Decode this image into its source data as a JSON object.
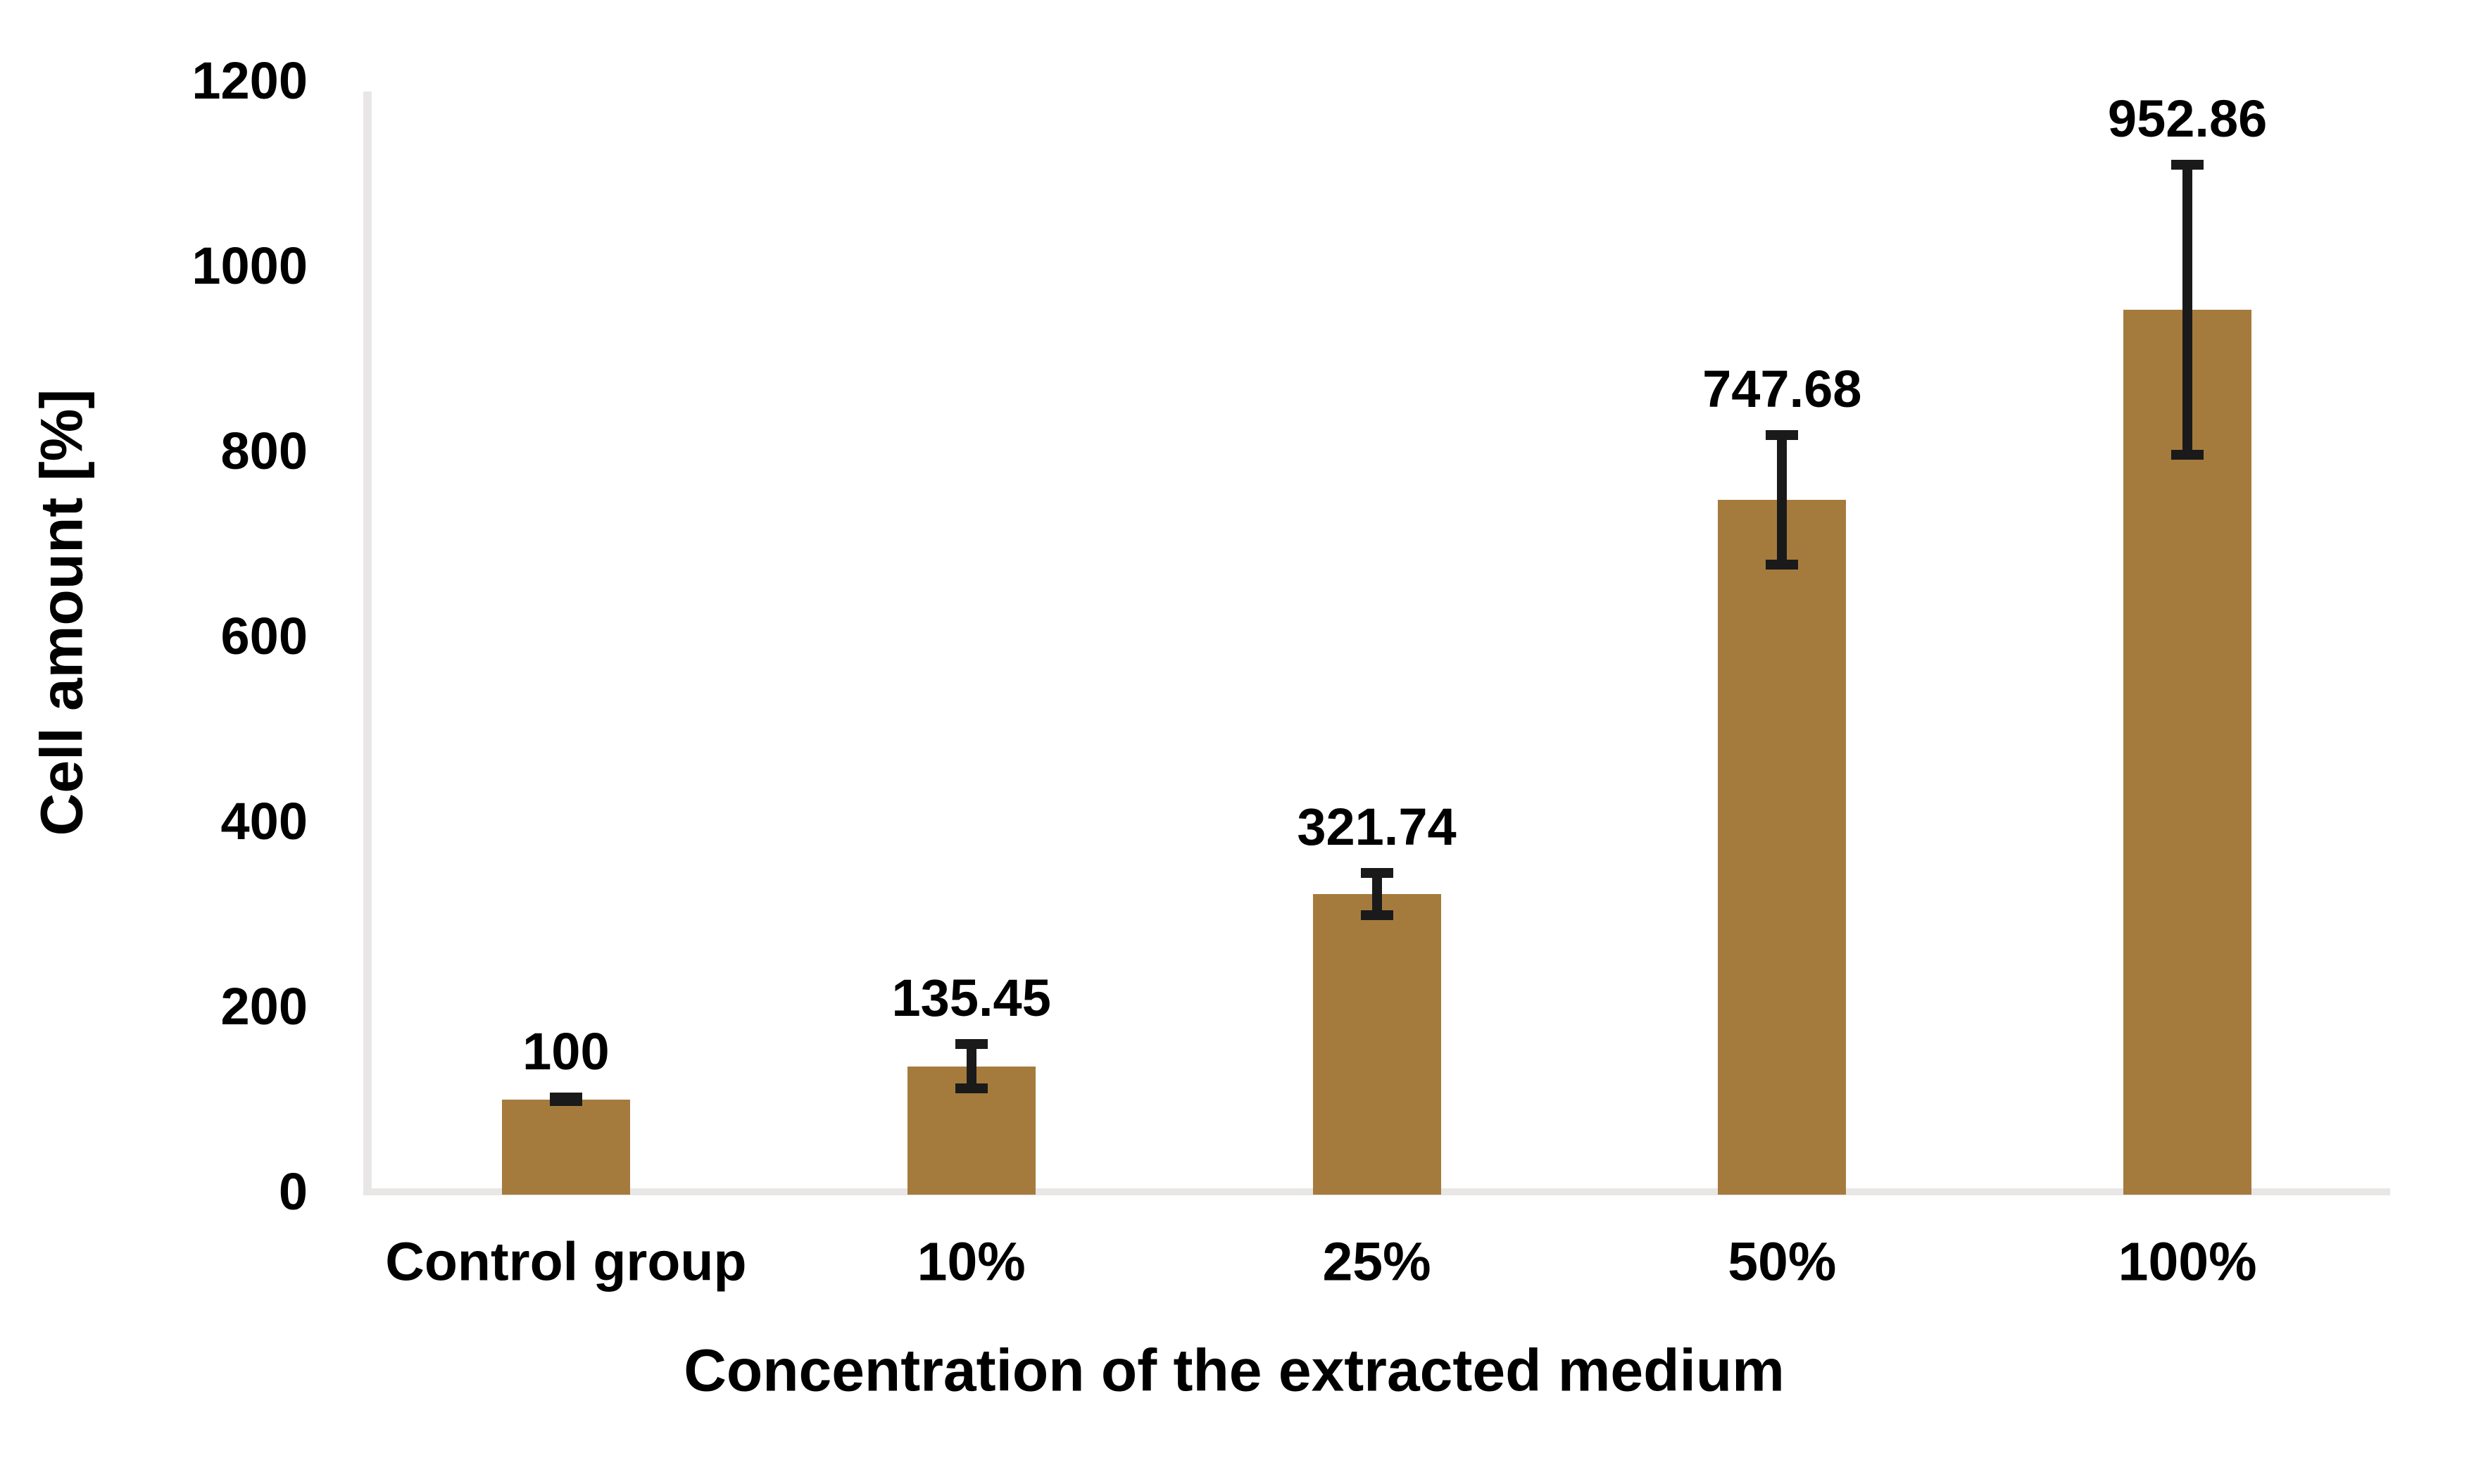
{
  "chart_data": {
    "type": "bar",
    "title": "",
    "categories": [
      "Control group",
      "10%",
      "25%",
      "50%",
      "100%"
    ],
    "values": [
      100,
      135.45,
      321.74,
      747.68,
      952.86
    ],
    "value_labels": [
      "100",
      "135.45",
      "321.74",
      "747.68",
      "952.86"
    ],
    "error_bars_plus_minus": [
      2,
      24,
      23,
      70,
      157
    ],
    "xlabel": "Concentration of the extracted medium",
    "ylabel": "Cell amount [%]",
    "ylim": [
      0,
      1200
    ],
    "yticks": [
      0,
      200,
      400,
      600,
      800,
      1000,
      1200
    ],
    "ytick_labels": [
      "0",
      "200",
      "400",
      "600",
      "800",
      "1000",
      "1200"
    ],
    "grid": false,
    "legend": "none",
    "bar_color": "#A57B3D",
    "error_bar_color": "#1A1A1A",
    "axis_line_color": "#E8E7E5",
    "label_color": "#000000",
    "background_color": "#FFFFFF"
  }
}
